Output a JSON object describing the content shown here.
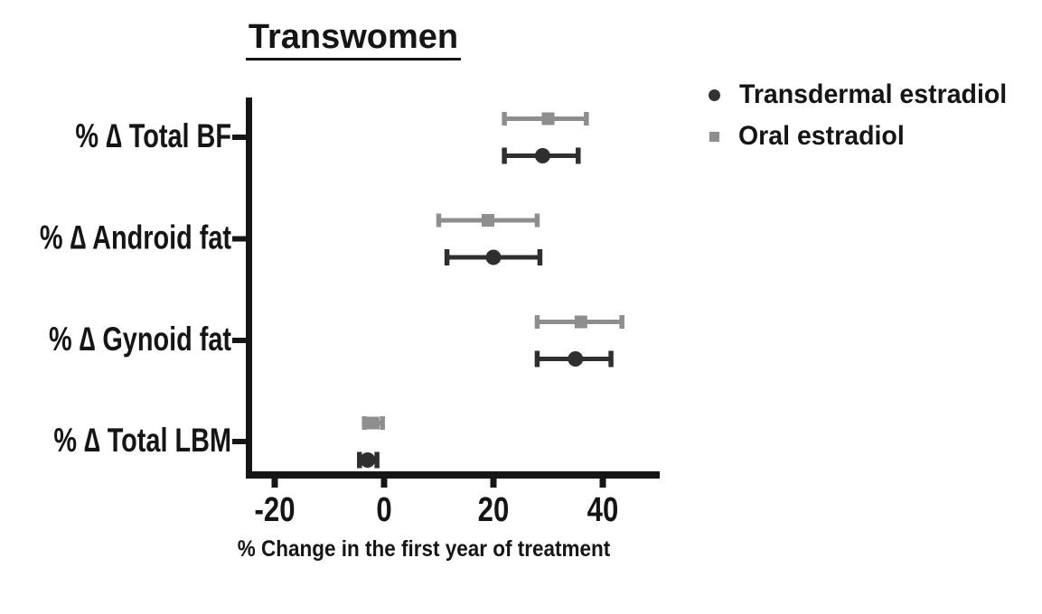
{
  "figure": {
    "background": "#ffffff",
    "axis_color": "#161616",
    "text_color": "#151515"
  },
  "chart_data": {
    "type": "scatter",
    "subtype": "horizontal-dot-plot-with-error-bars",
    "title": "Transwomen",
    "xlabel": "% Change in the first year of treatment",
    "ylabel": "",
    "categories": [
      "% ∆ Total BF",
      "% ∆ Android fat",
      "% ∆ Gynoid fat",
      "% ∆ Total LBM"
    ],
    "x_ticks": [
      -20,
      0,
      20,
      40
    ],
    "xlim": [
      -25,
      50
    ],
    "grid": false,
    "legend_position": "top-right",
    "series": [
      {
        "name": "Transdermal estradiol",
        "marker": "circle",
        "color": "#2f2f2f",
        "values": [
          29,
          20,
          35,
          -3
        ],
        "ci_low": [
          22,
          11.5,
          28,
          -4.5
        ],
        "ci_high": [
          35.5,
          28.5,
          41.5,
          -1.3
        ]
      },
      {
        "name": "Oral estradiol",
        "marker": "square",
        "color": "#8e8e8e",
        "values": [
          30,
          19,
          36,
          -2
        ],
        "ci_low": [
          22,
          10,
          28,
          -3.6
        ],
        "ci_high": [
          37,
          28,
          43.5,
          -0.3
        ]
      }
    ]
  }
}
